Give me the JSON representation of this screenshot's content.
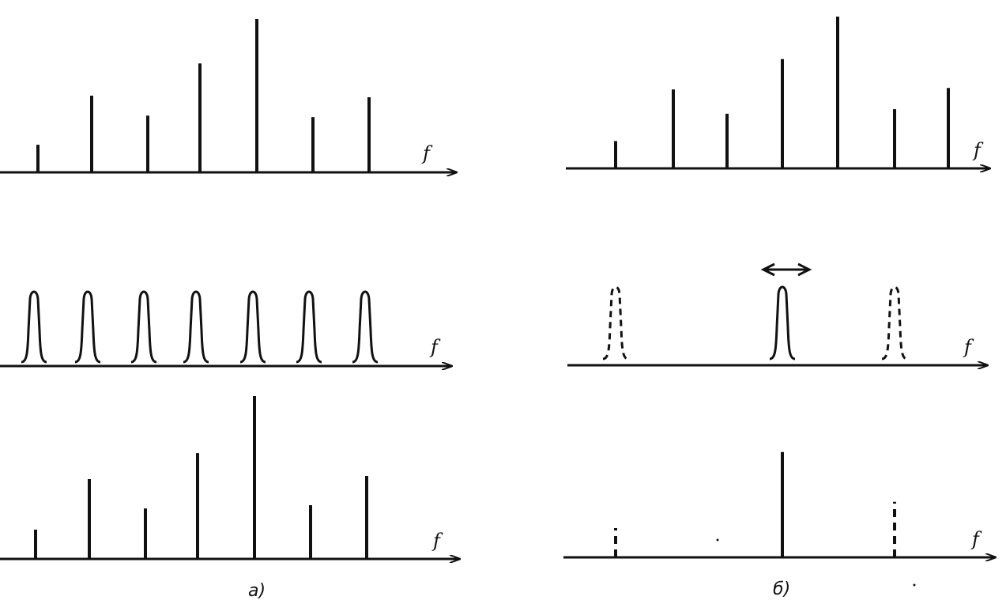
{
  "figure": {
    "axis_label": "f",
    "captions": [
      "а)",
      "б)"
    ],
    "ink_color": "#111111"
  },
  "panel_a": {
    "caption": "а)",
    "top_spectrum": {
      "lines": [
        0.18,
        0.5,
        0.37,
        0.71,
        1.0,
        0.36,
        0.49
      ]
    },
    "filter_bank": {
      "filters": 7,
      "style": "solid"
    },
    "bottom_spectrum": {
      "lines": [
        0.18,
        0.49,
        0.31,
        0.65,
        1.0,
        0.33,
        0.51
      ]
    }
  },
  "panel_b": {
    "caption": "б)",
    "top_spectrum": {
      "lines": [
        0.18,
        0.52,
        0.36,
        0.72,
        1.0,
        0.39,
        0.53
      ]
    },
    "tunable_filter": {
      "positions": [
        {
          "index": 0,
          "style": "dashed"
        },
        {
          "index": 3,
          "style": "solid",
          "tunable": true
        },
        {
          "index": 5,
          "style": "dashed"
        }
      ]
    },
    "bottom_spectrum": {
      "lines": [
        {
          "index": 0,
          "value": 0.2,
          "style": "dashed"
        },
        {
          "index": 3,
          "value": 0.72,
          "style": "solid"
        },
        {
          "index": 5,
          "value": 0.38,
          "style": "dashed"
        }
      ]
    }
  }
}
